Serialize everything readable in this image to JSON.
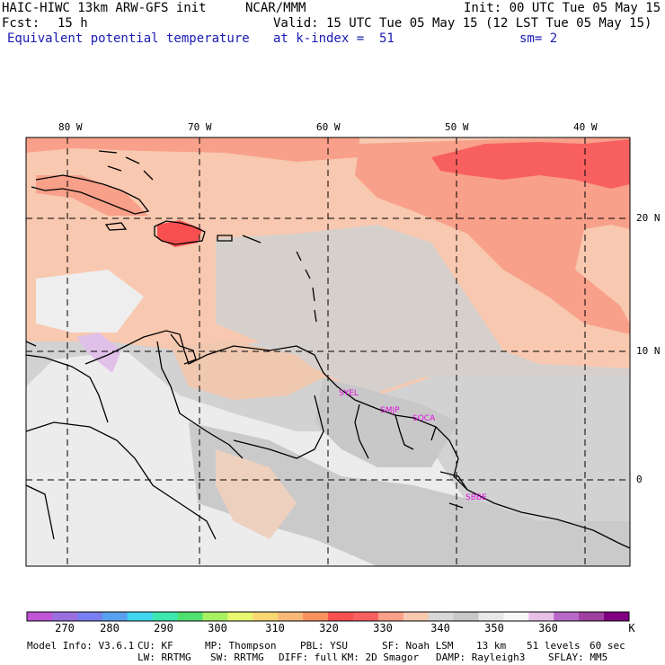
{
  "header": {
    "model": "HAIC-HIWC 13km ARW-GFS init",
    "center": "NCAR/MMM",
    "init": "Init: 00 UTC Tue 05 May 15",
    "fcst_label": "Fcst:",
    "fcst_value": "15 h",
    "valid": "Valid: 15 UTC Tue 05 May 15 (12 LST Tue 05 May 15)",
    "field": "Equivalent potential temperature",
    "level": "at k-index =  51",
    "smoothing": "sm= 2"
  },
  "map": {
    "lon_ticks": [
      "80 W",
      "70 W",
      "60 W",
      "50 W",
      "40 W"
    ],
    "lat_ticks": [
      "20 N",
      "10 N",
      "0"
    ],
    "stations": [
      "SYEL",
      "SMJP",
      "SOCA",
      "SBBE"
    ]
  },
  "colorbar": {
    "labels": [
      "270",
      "280",
      "290",
      "300",
      "310",
      "320",
      "330",
      "340",
      "350",
      "360",
      "K"
    ],
    "colors": [
      "#c055d8",
      "#9b6ee0",
      "#7b7ef0",
      "#5aa0f0",
      "#40d8f0",
      "#3ce8b0",
      "#50e070",
      "#a8f060",
      "#e8f870",
      "#f8d870",
      "#f8b878",
      "#f89060",
      "#f85050",
      "#f86060",
      "#f8a088",
      "#f8c8b0",
      "#d8d8d8",
      "#c8c8c8",
      "#e8e8e8",
      "#f8f8f8",
      "#e8c0e8",
      "#b868c8",
      "#a040a0",
      "#800080"
    ]
  },
  "footer": {
    "line1": [
      "Model Info: V3.6.1",
      "CU: KF",
      "MP: Thompson",
      "PBL: YSU",
      "SF: Noah LSM",
      "13 km",
      "51 levels",
      "60 sec"
    ],
    "line2": [
      "LW: RRTMG",
      "SW: RRTMG",
      "DIFF: full",
      "KM: 2D Smagor",
      "DAMP: Rayleigh3",
      "SFLAY: MM5"
    ]
  }
}
